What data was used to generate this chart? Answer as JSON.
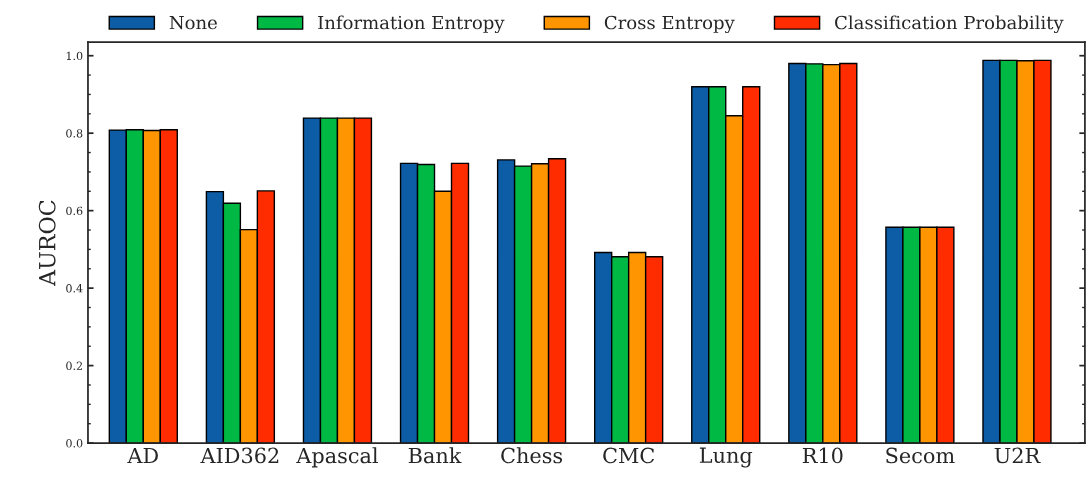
{
  "chart_data": {
    "type": "bar",
    "ylabel": "AUROC",
    "categories": [
      "AD",
      "AID362",
      "Apascal",
      "Bank",
      "Chess",
      "CMC",
      "Lung",
      "R10",
      "Secom",
      "U2R"
    ],
    "series": [
      {
        "name": "None",
        "color": "#0c5da5",
        "values": [
          0.808,
          0.649,
          0.839,
          0.722,
          0.731,
          0.492,
          0.92,
          0.98,
          0.557,
          0.988
        ]
      },
      {
        "name": "Information Entropy",
        "color": "#00b945",
        "values": [
          0.809,
          0.619,
          0.839,
          0.719,
          0.715,
          0.481,
          0.92,
          0.979,
          0.557,
          0.988
        ]
      },
      {
        "name": "Cross Entropy",
        "color": "#ff9500",
        "values": [
          0.807,
          0.551,
          0.839,
          0.65,
          0.721,
          0.492,
          0.845,
          0.977,
          0.557,
          0.987
        ]
      },
      {
        "name": "Classification Probability",
        "color": "#ff2c00",
        "values": [
          0.809,
          0.651,
          0.839,
          0.722,
          0.734,
          0.481,
          0.92,
          0.98,
          0.557,
          0.988
        ]
      }
    ],
    "ylim": [
      0,
      1.035
    ],
    "yticks": [
      {
        "value": 0,
        "label": "0.0"
      },
      0.2,
      0.4,
      0.6,
      0.8,
      {
        "value": 1,
        "label": "1.0"
      }
    ],
    "legend": "top",
    "grid": false
  }
}
